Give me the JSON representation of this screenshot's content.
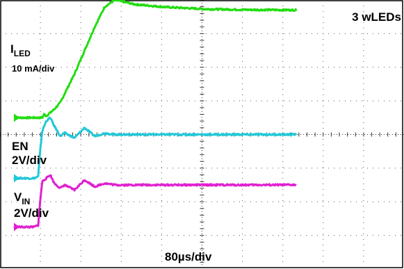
{
  "chart_data": {
    "type": "line",
    "title": "",
    "grid": true,
    "divisions": {
      "x": 10,
      "y": 8
    },
    "annotations": {
      "top_right": "3 wLEDs",
      "bottom_center": "80µs/div"
    },
    "channels": [
      {
        "label_main": "I",
        "label_sub": "LED",
        "scale": "10 mA/div",
        "color": "#22dd11",
        "x": [
          0,
          20,
          40,
          50,
          56,
          60,
          64,
          72,
          80,
          92,
          100,
          120,
          140,
          160,
          180,
          200,
          240,
          300,
          380,
          460,
          560
        ],
        "y": [
          0.5,
          0.5,
          0.5,
          0.5,
          0.5,
          0.6,
          0.55,
          0.65,
          0.75,
          0.95,
          1.2,
          1.8,
          2.5,
          3.2,
          3.8,
          4.0,
          3.87,
          3.79,
          3.73,
          3.71,
          3.7
        ]
      },
      {
        "label_main": "EN",
        "label_sub": "",
        "scale": "2V/div",
        "color": "#22c8d8",
        "x": [
          0,
          20,
          40,
          48,
          52,
          56,
          64,
          72,
          80,
          92,
          100,
          120,
          140,
          160,
          180,
          200,
          240,
          300,
          380,
          460,
          560
        ],
        "y": [
          -1.3,
          -1.3,
          -1.3,
          -1.25,
          -0.5,
          0.1,
          0.4,
          0.5,
          0.25,
          -0.05,
          0.05,
          -0.1,
          0.2,
          -0.05,
          0.04,
          0.0,
          0.0,
          0.0,
          0.0,
          0.0,
          0.0
        ]
      },
      {
        "label_main": "V",
        "label_sub": "IN",
        "scale": "2V/div",
        "color": "#e020d0",
        "x": [
          0,
          20,
          40,
          48,
          52,
          56,
          64,
          72,
          80,
          92,
          100,
          120,
          140,
          160,
          180,
          200,
          240,
          300,
          380,
          460,
          560
        ],
        "y": [
          -2.75,
          -2.75,
          -2.75,
          -2.7,
          -2.0,
          -1.4,
          -1.3,
          -1.2,
          -1.45,
          -1.6,
          -1.5,
          -1.65,
          -1.35,
          -1.55,
          -1.45,
          -1.5,
          -1.5,
          -1.5,
          -1.5,
          -1.5,
          -1.5
        ]
      }
    ]
  }
}
